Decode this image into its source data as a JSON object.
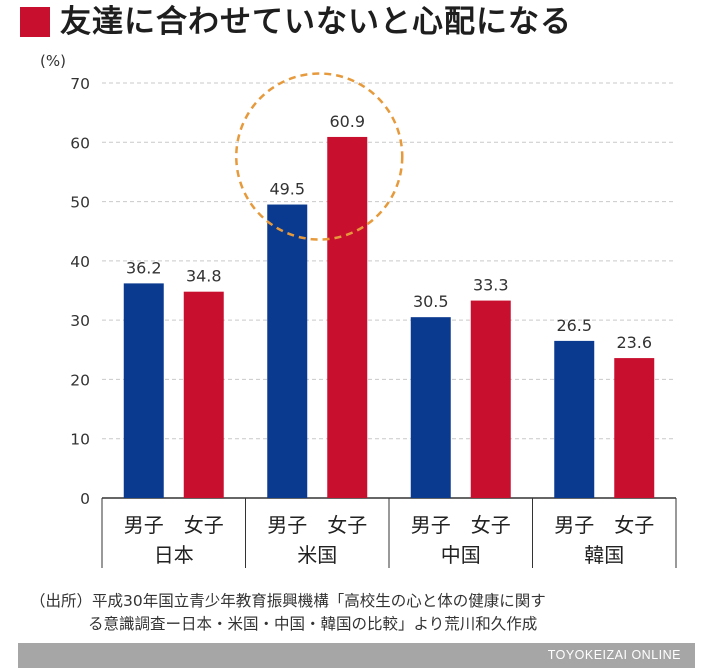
{
  "title": "友達に合わせていないと心配になる",
  "colors": {
    "title_square": "#c8102e",
    "male": "#0a3a8f",
    "female": "#c8102e",
    "gridline": "#c9c9c9",
    "highlight": "#e69a3c",
    "footer_bg": "#a6a6a6"
  },
  "chart_data": {
    "type": "bar",
    "unit": "(%)",
    "ylim": [
      0,
      70
    ],
    "yticks": [
      0,
      10,
      20,
      30,
      40,
      50,
      60,
      70
    ],
    "grid": true,
    "categories": [
      "日本",
      "米国",
      "中国",
      "韓国"
    ],
    "bar_labels": [
      "男子",
      "女子"
    ],
    "series": [
      {
        "name": "男子",
        "values": [
          36.2,
          49.5,
          30.5,
          26.5
        ]
      },
      {
        "name": "女子",
        "values": [
          34.8,
          60.9,
          33.3,
          23.6
        ]
      }
    ],
    "value_labels": [
      [
        "36.2",
        "49.5",
        "30.5",
        "26.5"
      ],
      [
        "34.8",
        "60.9",
        "33.3",
        "23.6"
      ]
    ],
    "highlight_category": "米国"
  },
  "source": {
    "line1": "（出所）平成30年国立青少年教育振興機構「高校生の心と体の健康に関す",
    "line2": "る意識調査ー日本・米国・中国・韓国の比較」より荒川和久作成"
  },
  "footer": {
    "credit": "TOYOKEIZAI ONLINE"
  }
}
